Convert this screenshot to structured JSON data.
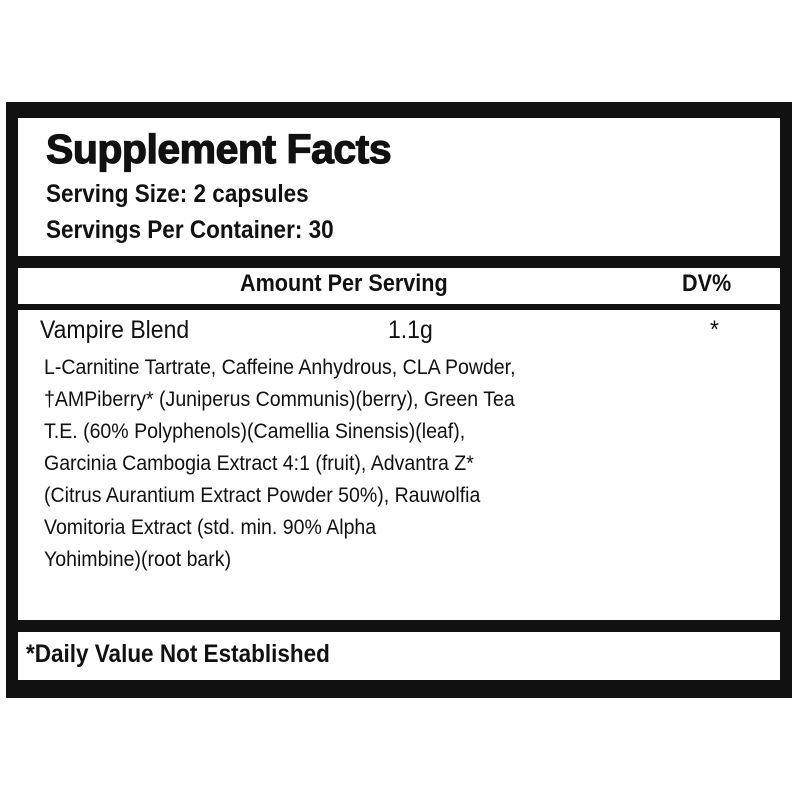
{
  "label": {
    "title": "Supplement Facts",
    "serving_size": "Serving Size: 2 capsules",
    "servings_per_container": "Servings Per Container: 30",
    "columns": {
      "amount": "Amount Per Serving",
      "dv": "DV%"
    },
    "blend": {
      "name": "Vampire Blend",
      "amount": "1.1g",
      "dv": "*"
    },
    "ingredient_lines": [
      "L-Carnitine Tartrate, Caffeine Anhydrous, CLA Powder,",
      "†AMPiberry* (Juniperus Communis)(berry), Green Tea",
      "T.E. (60% Polyphenols)(Camellia Sinensis)(leaf),",
      "Garcinia Cambogia Extract 4:1 (fruit), Advantra Z*",
      "(Citrus Aurantium Extract Powder 50%), Rauwolfia",
      "Vomitoria Extract (std. min. 90% Alpha",
      "Yohimbine)(root bark)"
    ],
    "footnote": "*Daily Value Not Established"
  },
  "colors": {
    "border": "#111111",
    "background": "#ffffff"
  }
}
